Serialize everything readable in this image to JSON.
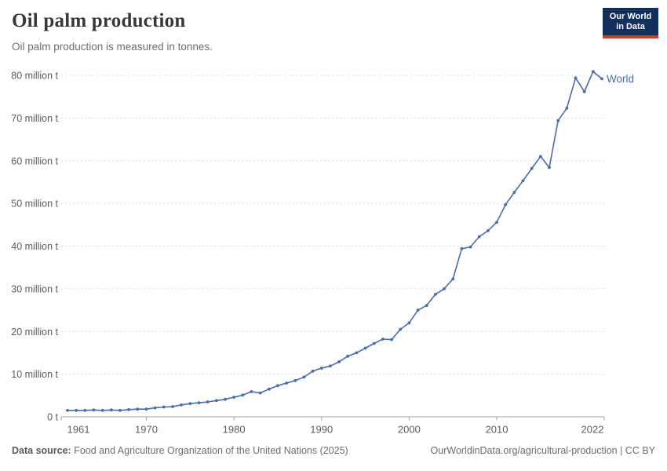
{
  "header": {
    "title": "Oil palm production",
    "subtitle": "Oil palm production is measured in tonnes."
  },
  "logo": {
    "line1": "Our World",
    "line2": "in Data",
    "bg_color": "#12305b",
    "accent_color": "#d33b31"
  },
  "colors": {
    "line": "#4c6ba9",
    "grid": "#dcdcdc",
    "axis": "#a3a3a3",
    "tick_text": "#5c5c5c",
    "title_text": "#383838",
    "subtitle_text": "#6e6e6e",
    "footer_text": "#6d6d6d"
  },
  "chart_data": {
    "type": "line",
    "title": "Oil palm production",
    "unit": "tonnes",
    "ylabel": "",
    "xlabel": "",
    "xlim": [
      1961,
      2022
    ],
    "ylim": [
      0,
      80
    ],
    "grid": "horizontal-dashed",
    "legend_position": "end-of-line-label",
    "yticks": [
      {
        "value": 0,
        "label": "0 t"
      },
      {
        "value": 10,
        "label": "10 million t"
      },
      {
        "value": 20,
        "label": "20 million t"
      },
      {
        "value": 30,
        "label": "30 million t"
      },
      {
        "value": 40,
        "label": "40 million t"
      },
      {
        "value": 50,
        "label": "50 million t"
      },
      {
        "value": 60,
        "label": "60 million t"
      },
      {
        "value": 70,
        "label": "70 million t"
      },
      {
        "value": 80,
        "label": "80 million t"
      }
    ],
    "xticks": [
      {
        "year": 1961,
        "label": "1961"
      },
      {
        "year": 1970,
        "label": "1970"
      },
      {
        "year": 1980,
        "label": "1980"
      },
      {
        "year": 1990,
        "label": "1990"
      },
      {
        "year": 2000,
        "label": "2000"
      },
      {
        "year": 2010,
        "label": "2010"
      },
      {
        "year": 2022,
        "label": "2022"
      }
    ],
    "series": [
      {
        "name": "World",
        "color": "#4c6ba9",
        "x": [
          1961,
          1962,
          1963,
          1964,
          1965,
          1966,
          1967,
          1968,
          1969,
          1970,
          1971,
          1972,
          1973,
          1974,
          1975,
          1976,
          1977,
          1978,
          1979,
          1980,
          1981,
          1982,
          1983,
          1984,
          1985,
          1986,
          1987,
          1988,
          1989,
          1990,
          1991,
          1992,
          1993,
          1994,
          1995,
          1996,
          1997,
          1998,
          1999,
          2000,
          2001,
          2002,
          2003,
          2004,
          2005,
          2006,
          2007,
          2008,
          2009,
          2010,
          2011,
          2012,
          2013,
          2014,
          2015,
          2016,
          2017,
          2018,
          2019,
          2020,
          2021,
          2022
        ],
        "values": [
          1.5,
          1.5,
          1.5,
          1.6,
          1.5,
          1.6,
          1.5,
          1.7,
          1.8,
          1.8,
          2.1,
          2.3,
          2.4,
          2.8,
          3.1,
          3.3,
          3.5,
          3.8,
          4.1,
          4.6,
          5.1,
          5.9,
          5.6,
          6.5,
          7.3,
          7.9,
          8.5,
          9.3,
          10.7,
          11.4,
          11.9,
          12.9,
          14.2,
          15.0,
          16.1,
          17.2,
          18.2,
          18.1,
          20.5,
          22.0,
          25.0,
          26.1,
          28.7,
          30.0,
          32.3,
          39.4,
          39.8,
          42.2,
          43.6,
          45.6,
          49.7,
          52.6,
          55.3,
          58.2,
          61.0,
          58.4,
          69.4,
          72.3,
          79.4,
          76.2,
          80.9,
          79.2
        ]
      }
    ]
  },
  "footer": {
    "source_label": "Data source:",
    "source_text": " Food and Agriculture Organization of the United Nations (2025)",
    "link": "OurWorldinData.org/agricultural-production | CC BY"
  }
}
